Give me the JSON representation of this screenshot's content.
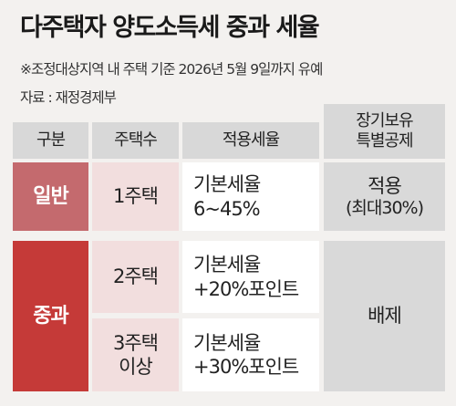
{
  "title": "다주택자 양도소득세 중과 세율",
  "note": "※조정대상지역 내 주택 기준 2026년 5월 9일까지 유예",
  "source": "자료 : 재정경제부",
  "table": {
    "headers": {
      "category": "구분",
      "houses": "주택수",
      "rate": "적용세율",
      "deduction_line1": "장기보유",
      "deduction_line2": "특별공제"
    },
    "general": {
      "label": "일반",
      "houses": "1주택",
      "rate_line1": "기본세율",
      "rate_line2": "6~45%",
      "deduction_line1": "적용",
      "deduction_line2": "(최대30%)"
    },
    "heavy": {
      "label": "중과",
      "row1_houses": "2주택",
      "row1_rate_line1": "기본세율",
      "row1_rate_line2": "+20%포인트",
      "row2_houses_line1": "3주택",
      "row2_houses_line2": "이상",
      "row2_rate_line1": "기본세율",
      "row2_rate_line2": "+30%포인트",
      "deduction": "배제"
    }
  }
}
